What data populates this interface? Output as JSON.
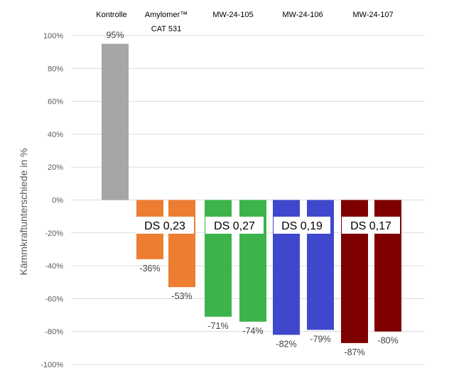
{
  "chart_data": {
    "type": "bar",
    "ylabel": "Kämmkraftunterschiede in %",
    "ylim": [
      -100,
      100
    ],
    "yticks": [
      "100%",
      "80%",
      "60%",
      "40%",
      "20%",
      "0%",
      "-20%",
      "-40%",
      "-60%",
      "-80%",
      "-100%"
    ],
    "grid": true,
    "groups": [
      {
        "label": "Kontrolle",
        "label_line2": "",
        "ds": ""
      },
      {
        "label": "Amylomer™",
        "label_line2": "CAT 531",
        "ds": "DS 0,23"
      },
      {
        "label": "MW-24-105",
        "label_line2": "",
        "ds": "DS 0,27"
      },
      {
        "label": "MW-24-106",
        "label_line2": "",
        "ds": "DS 0,19"
      },
      {
        "label": "MW-24-107",
        "label_line2": "",
        "ds": "DS 0,17"
      }
    ],
    "bars": [
      {
        "group": 0,
        "value": 95,
        "label": "95%",
        "color": "#a6a6a6"
      },
      {
        "group": 1,
        "value": -36,
        "label": "-36%",
        "color": "#ed7d31"
      },
      {
        "group": 1,
        "value": -53,
        "label": "-53%",
        "color": "#ed7d31"
      },
      {
        "group": 2,
        "value": -71,
        "label": "-71%",
        "color": "#3cb44b"
      },
      {
        "group": 2,
        "value": -74,
        "label": "-74%",
        "color": "#3cb44b"
      },
      {
        "group": 3,
        "value": -82,
        "label": "-82%",
        "color": "#3f48cc"
      },
      {
        "group": 3,
        "value": -79,
        "label": "-79%",
        "color": "#3f48cc"
      },
      {
        "group": 4,
        "value": -87,
        "label": "-87%",
        "color": "#7f0000"
      },
      {
        "group": 4,
        "value": -80,
        "label": "-80%",
        "color": "#7f0000"
      }
    ]
  }
}
